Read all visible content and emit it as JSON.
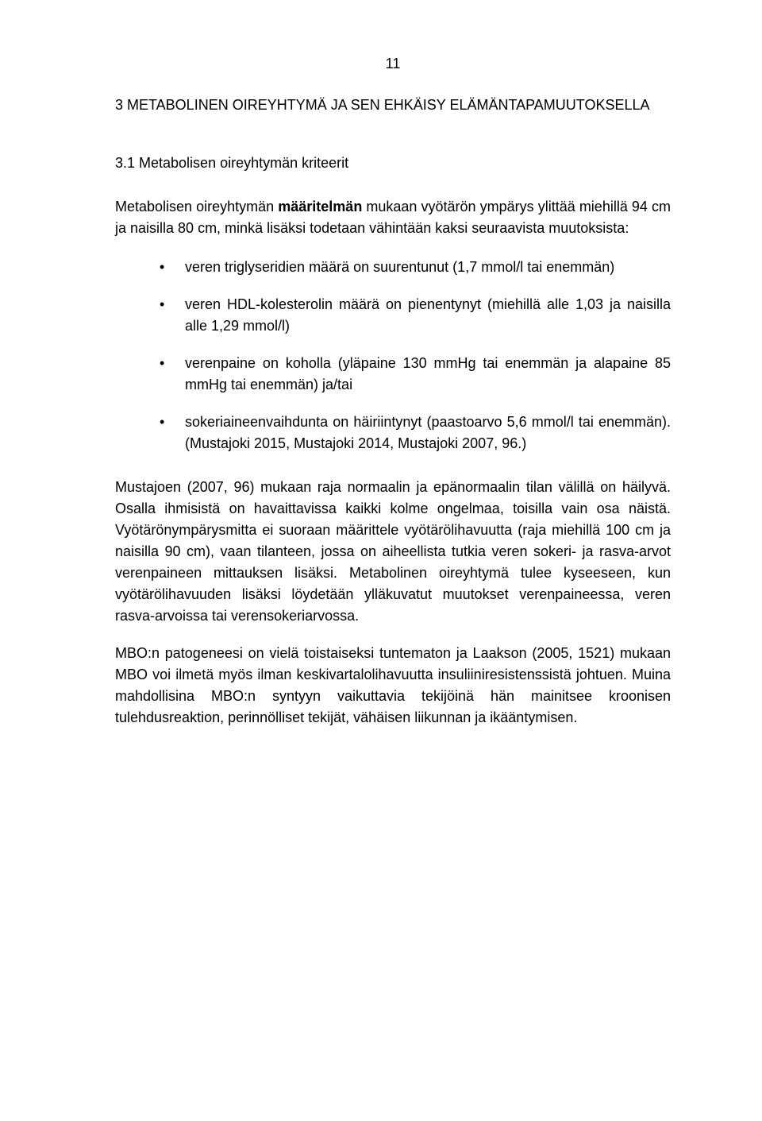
{
  "page_number": "11",
  "heading_main": "3   METABOLINEN OIREYHTYMÄ JA SEN EHKÄISY ELÄMÄNTAPAMUUTOKSELLA",
  "heading_sub": "3.1   Metabolisen oireyhtymän kriteerit",
  "intro_pre": "Metabolisen oireyhtymän ",
  "intro_bold": "määritelmän",
  "intro_post": " mukaan vyötärön ympärys ylittää miehillä 94 cm ja naisilla 80 cm, minkä lisäksi todetaan vähintään kaksi seuraavista muutoksista:",
  "bullets": [
    "veren triglyseridien määrä on suurentunut (1,7 mmol/l tai enemmän)",
    "veren HDL-kolesterolin määrä on pienentynyt (miehillä alle 1,03 ja naisilla alle 1,29 mmol/l)",
    "verenpaine on koholla (yläpaine 130 mmHg tai enemmän ja alapaine 85 mmHg tai enemmän) ja/tai",
    "sokeriaineenvaihdunta on häiriintynyt (paastoarvo 5,6 mmol/l tai enemmän). (Mustajoki 2015, Mustajoki 2014, Mustajoki 2007, 96.)"
  ],
  "para1": "Mustajoen (2007, 96) mukaan raja normaalin ja epänormaalin tilan välillä on häilyvä. Osalla ihmisistä on havaittavissa kaikki kolme ongelmaa, toisilla vain osa näistä. Vyötärönympärysmitta ei suoraan määrittele vyötärölihavuutta (raja miehillä 100 cm ja naisilla 90 cm), vaan tilanteen, jossa on aiheellista tutkia veren sokeri- ja rasva-arvot verenpaineen mittauksen lisäksi. Metabolinen oireyhtymä tulee kyseeseen, kun vyötärölihavuuden lisäksi löydetään ylläkuvatut muutokset verenpaineessa, veren rasva-arvoissa tai verensokeriarvossa.",
  "para2": "MBO:n patogeneesi on vielä toistaiseksi tuntematon ja Laakson (2005, 1521) mukaan MBO voi ilmetä myös ilman keskivartalolihavuutta insuliiniresistenssistä johtuen. Muina mahdollisina MBO:n syntyyn vaikuttavia tekijöinä hän mainitsee kroonisen tulehdusreaktion, perinnölliset tekijät, vähäisen liikunnan ja ikääntymisen."
}
